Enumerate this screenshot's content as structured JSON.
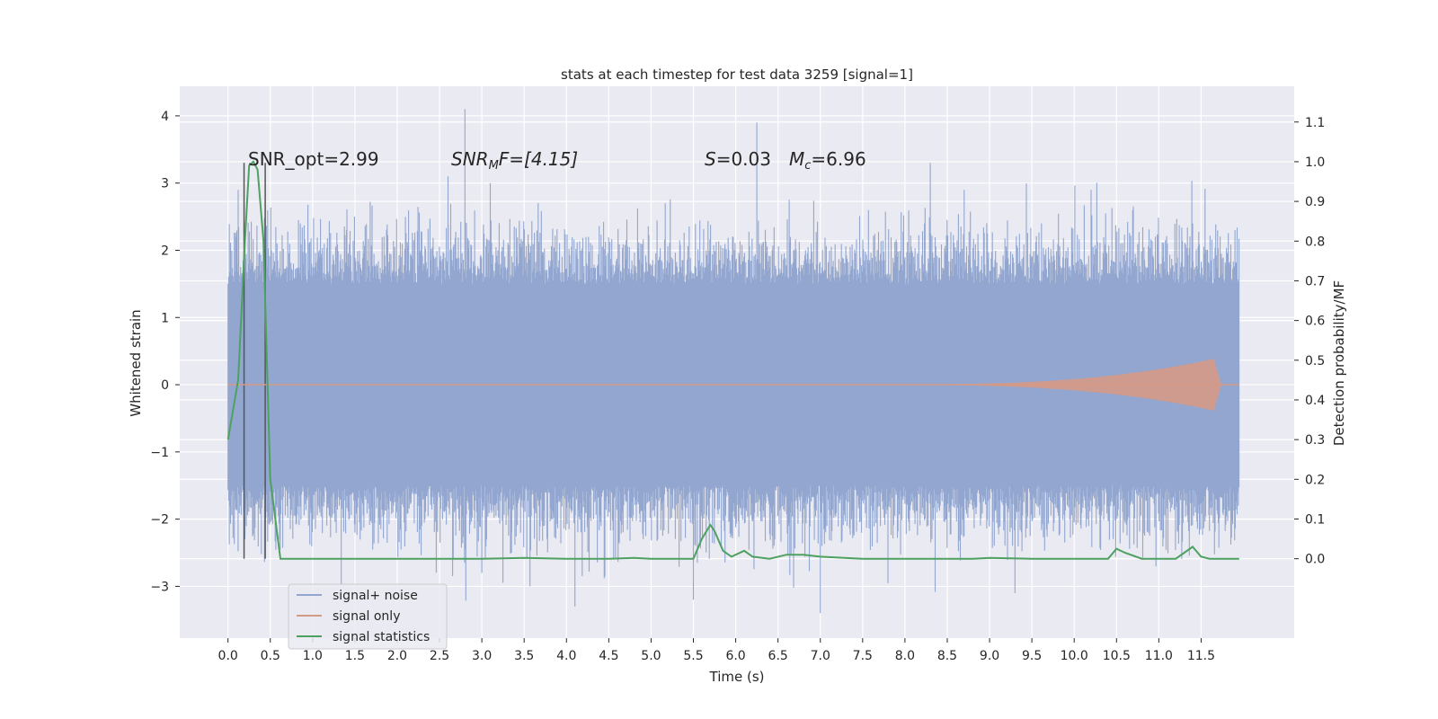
{
  "chart_data": {
    "type": "line",
    "title": "stats at each timestep for test data 3259 [signal=1]",
    "xlabel": "Time (s)",
    "ylabel": "Whitened strain",
    "ylabel_right": "Detection probability/MF",
    "xlim": [
      -0.57,
      12.6
    ],
    "ylim": [
      -3.77,
      4.44
    ],
    "ylim_right": [
      -0.2,
      1.19
    ],
    "x_ticks": [
      "0.0",
      "0.5",
      "1.0",
      "1.5",
      "2.0",
      "2.5",
      "3.0",
      "3.5",
      "4.0",
      "4.5",
      "5.0",
      "5.5",
      "6.0",
      "6.5",
      "7.0",
      "7.5",
      "8.0",
      "8.5",
      "9.0",
      "9.5",
      "10.0",
      "10.5",
      "11.0",
      "11.5"
    ],
    "y_ticks": [
      "4",
      "3",
      "2",
      "1",
      "0",
      "−1",
      "−2",
      "−3"
    ],
    "y_right_ticks": [
      "1.1",
      "1.0",
      "0.9",
      "0.8",
      "0.7",
      "0.6",
      "0.5",
      "0.4",
      "0.3",
      "0.2",
      "0.1",
      "0.0"
    ],
    "grid": true,
    "legend_position": "lower-left",
    "annotations": {
      "snr_opt": "SNR_opt=2.99",
      "snr_mf_prefix": "SNR",
      "snr_mf_sub": "M",
      "snr_mf_suffix": "F=[4.15]",
      "s_var": "S",
      "s_val": "=0.03",
      "mc_var": "M",
      "mc_sub": "c",
      "mc_val": "=6.96"
    },
    "vlines": [
      0.19,
      0.44
    ],
    "series": [
      {
        "name": "signal+ noise",
        "color": "#92a6cf",
        "axis": "left",
        "x_range": [
          0.0,
          11.95
        ],
        "noise_band": [
          -1.5,
          1.5
        ],
        "peaks": [
          {
            "x": 0.1,
            "y": 2.2
          },
          {
            "x": 0.12,
            "y": 2.9
          },
          {
            "x": 0.2,
            "y": -2.3
          },
          {
            "x": 1.4,
            "y": 2.3
          },
          {
            "x": 1.5,
            "y": -2.2
          },
          {
            "x": 2.6,
            "y": 3.1
          },
          {
            "x": 2.8,
            "y": 4.1
          },
          {
            "x": 3.0,
            "y": -2.8
          },
          {
            "x": 3.1,
            "y": 3.0
          },
          {
            "x": 3.35,
            "y": -2.5
          },
          {
            "x": 4.1,
            "y": -3.3
          },
          {
            "x": 5.5,
            "y": -3.2
          },
          {
            "x": 6.25,
            "y": 3.9
          },
          {
            "x": 7.0,
            "y": -3.4
          },
          {
            "x": 8.3,
            "y": 3.3
          },
          {
            "x": 8.7,
            "y": 2.9
          },
          {
            "x": 9.3,
            "y": -3.1
          },
          {
            "x": 10.2,
            "y": 2.9
          },
          {
            "x": 11.4,
            "y": 2.4
          },
          {
            "x": 11.9,
            "y": 2.3
          }
        ]
      },
      {
        "name": "signal only",
        "color": "#d59a86",
        "axis": "left",
        "x_range": [
          0.0,
          11.95
        ],
        "amplitude_growth": {
          "start_x": 7.5,
          "peak_x": 11.7,
          "peak_amplitude": 0.4
        }
      },
      {
        "name": "signal statistics",
        "color": "#4ea160",
        "axis": "right",
        "x": [
          0.0,
          0.12,
          0.2,
          0.25,
          0.3,
          0.35,
          0.42,
          0.5,
          0.62,
          1.0,
          2.0,
          3.0,
          3.5,
          4.0,
          4.5,
          4.8,
          5.0,
          5.5,
          5.6,
          5.7,
          5.75,
          5.85,
          5.95,
          6.1,
          6.2,
          6.4,
          6.6,
          6.8,
          7.0,
          7.5,
          8.0,
          8.8,
          9.0,
          9.5,
          10.0,
          10.4,
          10.5,
          10.6,
          10.8,
          11.2,
          11.4,
          11.5,
          11.6,
          11.95
        ],
        "y": [
          0.3,
          0.45,
          0.8,
          0.99,
          1.0,
          0.98,
          0.8,
          0.2,
          0.0,
          0.0,
          0.0,
          0.0,
          0.002,
          0.0,
          0.0,
          0.002,
          0.0,
          0.0,
          0.05,
          0.085,
          0.07,
          0.02,
          0.005,
          0.02,
          0.005,
          0.0,
          0.01,
          0.01,
          0.005,
          0.0,
          0.0,
          0.0,
          0.002,
          0.0,
          0.0,
          0.0,
          0.025,
          0.015,
          0.0,
          0.0,
          0.03,
          0.005,
          0.0,
          0.0
        ]
      }
    ]
  }
}
